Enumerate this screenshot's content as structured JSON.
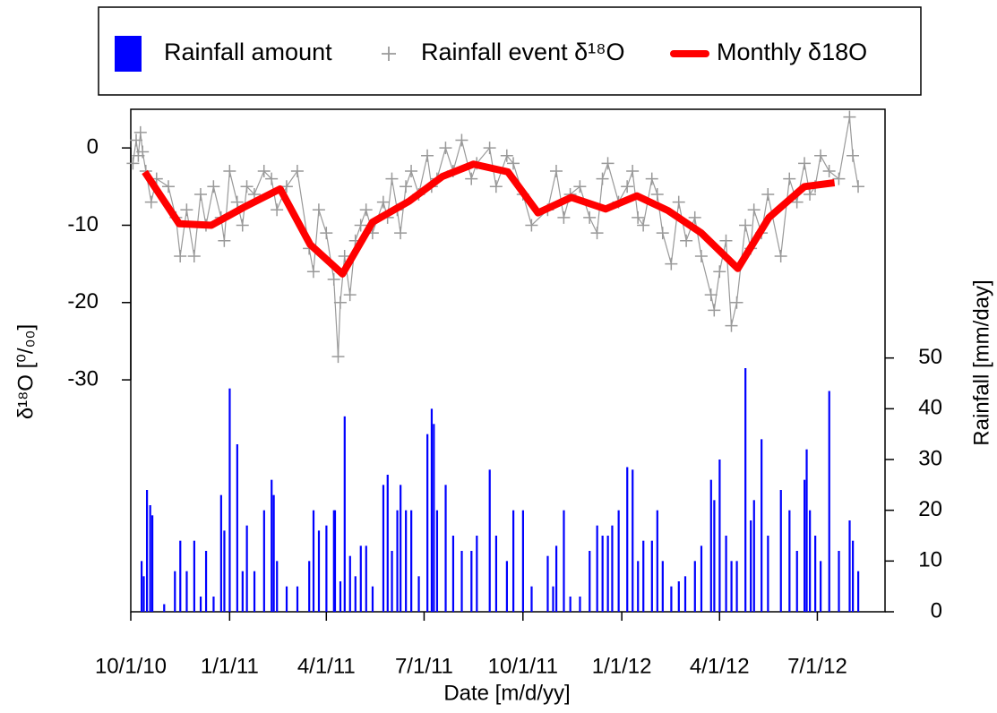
{
  "chart_data": {
    "type": "combo",
    "xlabel": "Date [m/d/yy]",
    "ylabel": "δ¹⁸O [⁰/₀₀]",
    "y2label": "Rainfall [mm/day]",
    "xlim": [
      "2010-10-01",
      "2012-09-02"
    ],
    "xticks": [
      {
        "value": "2010-10-01",
        "label": "10/1/10"
      },
      {
        "value": "2011-01-01",
        "label": "1/1/11"
      },
      {
        "value": "2011-04-01",
        "label": "4/1/11"
      },
      {
        "value": "2011-07-01",
        "label": "7/1/11"
      },
      {
        "value": "2011-10-01",
        "label": "10/1/11"
      },
      {
        "value": "2012-01-01",
        "label": "1/1/12"
      },
      {
        "value": "2012-04-01",
        "label": "4/1/12"
      },
      {
        "value": "2012-07-01",
        "label": "7/1/12"
      }
    ],
    "ylim": [
      -60,
      5
    ],
    "yticks": [
      0,
      -10,
      -20,
      -30
    ],
    "y2lim": [
      0,
      99
    ],
    "y2ticks": [
      0,
      10,
      20,
      30,
      40,
      50
    ],
    "legend": "top",
    "series": [
      {
        "name": "Rainfall amount",
        "type": "bar",
        "axis": "y2",
        "color": "#0000ff",
        "x": [
          "2010-10-11",
          "2010-10-13",
          "2010-10-16",
          "2010-10-19",
          "2010-10-21",
          "2010-11-01",
          "2010-11-11",
          "2010-11-16",
          "2010-11-22",
          "2010-11-29",
          "2010-12-05",
          "2010-12-10",
          "2010-12-17",
          "2010-12-24",
          "2010-12-27",
          "2011-01-01",
          "2011-01-08",
          "2011-01-13",
          "2011-01-17",
          "2011-01-24",
          "2011-02-02",
          "2011-02-09",
          "2011-02-11",
          "2011-02-14",
          "2011-02-23",
          "2011-03-05",
          "2011-03-16",
          "2011-03-20",
          "2011-03-25",
          "2011-04-01",
          "2011-04-08",
          "2011-04-09",
          "2011-04-14",
          "2011-04-18",
          "2011-04-23",
          "2011-04-28",
          "2011-05-03",
          "2011-05-08",
          "2011-05-14",
          "2011-05-24",
          "2011-05-28",
          "2011-06-01",
          "2011-06-06",
          "2011-06-09",
          "2011-06-14",
          "2011-06-19",
          "2011-06-26",
          "2011-07-04",
          "2011-07-08",
          "2011-07-10",
          "2011-07-13",
          "2011-07-21",
          "2011-07-28",
          "2011-08-05",
          "2011-08-14",
          "2011-08-19",
          "2011-08-31",
          "2011-09-06",
          "2011-09-16",
          "2011-09-22",
          "2011-10-01",
          "2011-10-09",
          "2011-10-24",
          "2011-10-29",
          "2011-11-01",
          "2011-11-08",
          "2011-11-14",
          "2011-11-23",
          "2011-12-02",
          "2011-12-09",
          "2011-12-14",
          "2011-12-19",
          "2011-12-23",
          "2011-12-29",
          "2012-01-06",
          "2012-01-11",
          "2012-01-16",
          "2012-01-21",
          "2012-01-29",
          "2012-02-03",
          "2012-02-08",
          "2012-02-16",
          "2012-02-23",
          "2012-02-29",
          "2012-03-09",
          "2012-03-15",
          "2012-03-24",
          "2012-03-27",
          "2012-04-01",
          "2012-04-07",
          "2012-04-12",
          "2012-04-17",
          "2012-04-25",
          "2012-04-30",
          "2012-05-03",
          "2012-05-10",
          "2012-05-16",
          "2012-05-28",
          "2012-06-05",
          "2012-06-12",
          "2012-06-19",
          "2012-06-21",
          "2012-06-24",
          "2012-06-29",
          "2012-07-04",
          "2012-07-12",
          "2012-07-21",
          "2012-07-31",
          "2012-08-03",
          "2012-08-08"
        ],
        "values": [
          10,
          7,
          24,
          21,
          19,
          1.5,
          8,
          14,
          8,
          14,
          3,
          12,
          3,
          23,
          16,
          44,
          33,
          8,
          17,
          8,
          20,
          26,
          23,
          10,
          5,
          5,
          10,
          20,
          16,
          17,
          20,
          20,
          6,
          38.5,
          11,
          7,
          13,
          13,
          5,
          25,
          27,
          12,
          20,
          25,
          20,
          20,
          7,
          35,
          40,
          37,
          20,
          25,
          15,
          12,
          12,
          15,
          28,
          15,
          10,
          20,
          20,
          5,
          11,
          5,
          13,
          20,
          3,
          3,
          12,
          17,
          15,
          15,
          17,
          20,
          28.5,
          28,
          10,
          14,
          14,
          20,
          10,
          5,
          6,
          7,
          10,
          13,
          26,
          22,
          30,
          15,
          10,
          10,
          48,
          18,
          22,
          34,
          15,
          24,
          20,
          12,
          26,
          32,
          20,
          15,
          10,
          43.5,
          12,
          18,
          14,
          8
        ]
      },
      {
        "name": "Rainfall event δ¹⁸O",
        "type": "scatter",
        "color": "#999999",
        "x": [
          "2010-10-03",
          "2010-10-06",
          "2010-10-08",
          "2010-10-10",
          "2010-10-12",
          "2010-10-15",
          "2010-10-20",
          "2010-10-25",
          "2010-11-05",
          "2010-11-12",
          "2010-11-16",
          "2010-11-22",
          "2010-11-29",
          "2010-12-05",
          "2010-12-10",
          "2010-12-17",
          "2010-12-24",
          "2010-12-27",
          "2011-01-01",
          "2011-01-08",
          "2011-01-13",
          "2011-01-17",
          "2011-01-24",
          "2011-02-02",
          "2011-02-09",
          "2011-02-14",
          "2011-02-23",
          "2011-03-05",
          "2011-03-16",
          "2011-03-20",
          "2011-03-25",
          "2011-04-01",
          "2011-04-08",
          "2011-04-12",
          "2011-04-14",
          "2011-04-18",
          "2011-04-23",
          "2011-04-28",
          "2011-05-03",
          "2011-05-08",
          "2011-05-14",
          "2011-05-24",
          "2011-05-28",
          "2011-06-01",
          "2011-06-06",
          "2011-06-09",
          "2011-06-14",
          "2011-06-19",
          "2011-06-26",
          "2011-07-04",
          "2011-07-08",
          "2011-07-13",
          "2011-07-21",
          "2011-07-28",
          "2011-08-05",
          "2011-08-14",
          "2011-08-19",
          "2011-08-31",
          "2011-09-06",
          "2011-09-16",
          "2011-09-22",
          "2011-10-01",
          "2011-10-09",
          "2011-10-24",
          "2011-11-01",
          "2011-11-08",
          "2011-11-14",
          "2011-11-23",
          "2011-12-02",
          "2011-12-09",
          "2011-12-14",
          "2011-12-19",
          "2011-12-29",
          "2012-01-06",
          "2012-01-11",
          "2012-01-16",
          "2012-01-21",
          "2012-01-29",
          "2012-02-03",
          "2012-02-08",
          "2012-02-16",
          "2012-02-23",
          "2012-03-01",
          "2012-03-09",
          "2012-03-15",
          "2012-03-24",
          "2012-03-27",
          "2012-04-01",
          "2012-04-07",
          "2012-04-12",
          "2012-04-17",
          "2012-04-25",
          "2012-04-30",
          "2012-05-03",
          "2012-05-10",
          "2012-05-16",
          "2012-05-28",
          "2012-06-05",
          "2012-06-12",
          "2012-06-19",
          "2012-06-24",
          "2012-06-29",
          "2012-07-04",
          "2012-07-12",
          "2012-07-21",
          "2012-07-31",
          "2012-08-03",
          "2012-08-08"
        ],
        "values": [
          -2,
          1,
          -1,
          2,
          -0.5,
          -3,
          -7,
          -4,
          -5,
          -9,
          -14,
          -8,
          -14,
          -6,
          -10,
          -5,
          -9,
          -12,
          -3,
          -7,
          -10,
          -5,
          -6,
          -3,
          -4,
          -8,
          -5,
          -3,
          -13,
          -16,
          -8,
          -11,
          -17,
          -27,
          -20,
          -14,
          -19,
          -12,
          -10,
          -8,
          -11,
          -7,
          -9,
          -4,
          -8,
          -11,
          -5,
          -3,
          -6,
          -1,
          -5,
          -4,
          0,
          -3,
          1,
          -4,
          -2,
          0,
          -5,
          -1,
          -2,
          -6,
          -10,
          -8,
          -3,
          -9,
          -6,
          -5,
          -9,
          -11,
          -4,
          -2,
          -7,
          -5,
          -3,
          -9,
          -10,
          -4,
          -6,
          -11,
          -15,
          -7,
          -12,
          -9,
          -14,
          -19,
          -21,
          -16,
          -12,
          -23,
          -20,
          -10,
          -13,
          -8,
          -11,
          -6,
          -14,
          -4,
          -7,
          -2,
          -6,
          -5,
          -1,
          -3,
          -4,
          4,
          -1,
          -5
        ]
      },
      {
        "name": "Monthly δ18O",
        "type": "line",
        "color": "#ff0000",
        "x": [
          "2010-10-14",
          "2010-11-15",
          "2010-12-15",
          "2011-01-14",
          "2011-02-17",
          "2011-03-17",
          "2011-04-16",
          "2011-05-14",
          "2011-06-17",
          "2011-07-18",
          "2011-08-16",
          "2011-09-17",
          "2011-10-15",
          "2011-11-15",
          "2011-12-17",
          "2012-01-15",
          "2012-02-13",
          "2012-03-15",
          "2012-04-18",
          "2012-05-17",
          "2012-06-19",
          "2012-07-17"
        ],
        "values": [
          -3.1,
          -9.8,
          -10,
          -7.7,
          -5.3,
          -12.5,
          -16.3,
          -9.6,
          -6.9,
          -3.7,
          -2.1,
          -3.1,
          -8.4,
          -6.4,
          -7.9,
          -6.2,
          -8.1,
          -11,
          -15.6,
          -9,
          -5,
          -4.5
        ]
      }
    ]
  }
}
